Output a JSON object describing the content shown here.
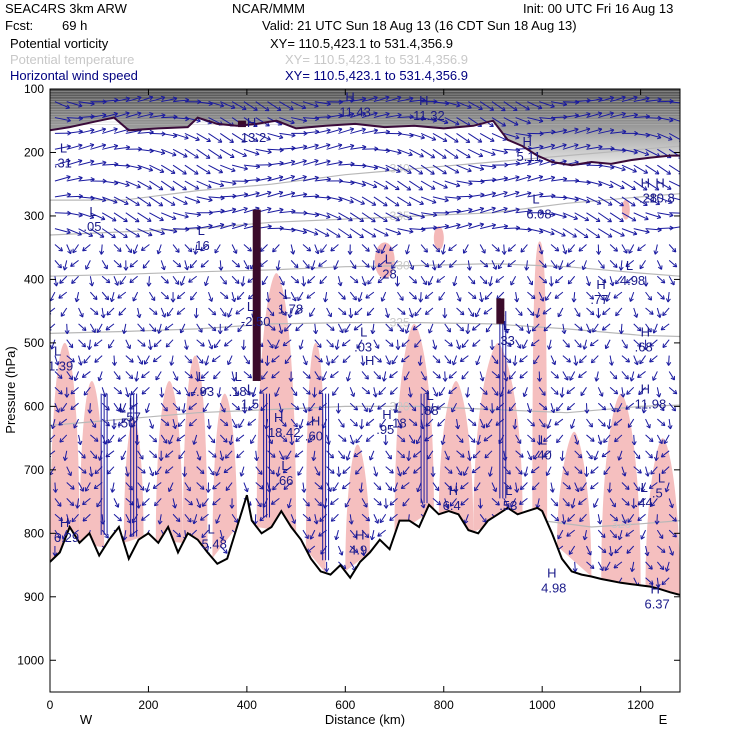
{
  "header": {
    "model": "SEAC4RS  3km ARW",
    "org": "NCAR/MMM",
    "init": "Init: 00 UTC Fri 16 Aug 13",
    "fcst_label": "Fcst:",
    "fcst_value": "69 h",
    "valid": "Valid: 21 UTC Sun 18 Aug 13 (16 CDT Sun 18 Aug 13)"
  },
  "fields": [
    {
      "name": "Potential vorticity",
      "xy": "XY= 110.5,423.1 to 531.4,356.9",
      "color": "#000000"
    },
    {
      "name": "Potential temperature",
      "xy": "XY= 110.5,423.1 to 531.4,356.9",
      "color": "#c8c8c8"
    },
    {
      "name": "Horizontal wind speed",
      "xy": "XY= 110.5,423.1 to 531.4,356.9",
      "color": "#000080"
    }
  ],
  "chart_data": {
    "type": "cross-section",
    "xlabel": "Distance (km)",
    "ylabel": "Pressure (hPa)",
    "xlim": [
      0,
      1280
    ],
    "ylim": [
      1050,
      100
    ],
    "xticks": [
      0,
      200,
      400,
      600,
      800,
      1000,
      1200
    ],
    "yticks": [
      100,
      200,
      300,
      400,
      500,
      600,
      700,
      800,
      900,
      1000
    ],
    "x_end_labels": {
      "left": "W",
      "right": "E"
    },
    "terrain_pressure": [
      [
        0,
        845
      ],
      [
        20,
        830
      ],
      [
        40,
        790
      ],
      [
        60,
        815
      ],
      [
        80,
        800
      ],
      [
        100,
        835
      ],
      [
        120,
        810
      ],
      [
        140,
        790
      ],
      [
        160,
        840
      ],
      [
        180,
        810
      ],
      [
        200,
        800
      ],
      [
        220,
        815
      ],
      [
        240,
        790
      ],
      [
        260,
        830
      ],
      [
        280,
        800
      ],
      [
        300,
        810
      ],
      [
        320,
        830
      ],
      [
        340,
        848
      ],
      [
        360,
        840
      ],
      [
        380,
        790
      ],
      [
        400,
        740
      ],
      [
        410,
        780
      ],
      [
        430,
        800
      ],
      [
        450,
        790
      ],
      [
        470,
        765
      ],
      [
        490,
        790
      ],
      [
        510,
        810
      ],
      [
        530,
        840
      ],
      [
        550,
        860
      ],
      [
        570,
        865
      ],
      [
        590,
        850
      ],
      [
        610,
        870
      ],
      [
        630,
        845
      ],
      [
        650,
        830
      ],
      [
        670,
        810
      ],
      [
        690,
        825
      ],
      [
        710,
        780
      ],
      [
        730,
        780
      ],
      [
        750,
        790
      ],
      [
        770,
        755
      ],
      [
        790,
        770
      ],
      [
        810,
        765
      ],
      [
        830,
        770
      ],
      [
        850,
        795
      ],
      [
        870,
        800
      ],
      [
        890,
        780
      ],
      [
        910,
        770
      ],
      [
        930,
        760
      ],
      [
        950,
        770
      ],
      [
        970,
        765
      ],
      [
        990,
        760
      ],
      [
        1000,
        765
      ],
      [
        1020,
        800
      ],
      [
        1040,
        840
      ],
      [
        1060,
        860
      ],
      [
        1080,
        865
      ],
      [
        1100,
        868
      ],
      [
        1120,
        872
      ],
      [
        1140,
        875
      ],
      [
        1160,
        878
      ],
      [
        1180,
        880
      ],
      [
        1200,
        882
      ],
      [
        1220,
        884
      ],
      [
        1240,
        888
      ],
      [
        1260,
        893
      ],
      [
        1280,
        897
      ]
    ],
    "tropopause_pv_pressure": [
      [
        0,
        165
      ],
      [
        40,
        160
      ],
      [
        100,
        150
      ],
      [
        130,
        145
      ],
      [
        160,
        165
      ],
      [
        220,
        162
      ],
      [
        280,
        160
      ],
      [
        300,
        145
      ],
      [
        340,
        155
      ],
      [
        380,
        158
      ],
      [
        420,
        155
      ],
      [
        460,
        150
      ],
      [
        500,
        162
      ],
      [
        560,
        158
      ],
      [
        620,
        155
      ],
      [
        680,
        160
      ],
      [
        740,
        158
      ],
      [
        800,
        162
      ],
      [
        860,
        158
      ],
      [
        900,
        150
      ],
      [
        930,
        180
      ],
      [
        960,
        190
      ],
      [
        990,
        205
      ],
      [
        1020,
        215
      ],
      [
        1060,
        220
      ],
      [
        1100,
        215
      ],
      [
        1140,
        218
      ],
      [
        1180,
        212
      ],
      [
        1220,
        208
      ],
      [
        1260,
        205
      ],
      [
        1280,
        205
      ]
    ],
    "theta_contours": [
      {
        "label": "340",
        "points": [
          [
            0,
            275
          ],
          [
            150,
            275
          ],
          [
            300,
            260
          ],
          [
            450,
            250
          ],
          [
            600,
            235
          ],
          [
            750,
            225
          ],
          [
            900,
            215
          ],
          [
            1050,
            205
          ],
          [
            1200,
            195
          ],
          [
            1280,
            190
          ]
        ]
      },
      {
        "label": "335",
        "points": [
          [
            0,
            330
          ],
          [
            150,
            325
          ],
          [
            300,
            320
          ],
          [
            450,
            310
          ],
          [
            600,
            305
          ],
          [
            750,
            300
          ],
          [
            900,
            295
          ],
          [
            1050,
            280
          ],
          [
            1200,
            270
          ],
          [
            1280,
            265
          ]
        ]
      },
      {
        "label": "330",
        "points": [
          [
            0,
            395
          ],
          [
            150,
            392
          ],
          [
            300,
            388
          ],
          [
            450,
            385
          ],
          [
            600,
            380
          ],
          [
            750,
            378
          ],
          [
            900,
            375
          ],
          [
            1050,
            380
          ],
          [
            1200,
            390
          ],
          [
            1280,
            395
          ]
        ]
      },
      {
        "label": "325",
        "points": [
          [
            0,
            485
          ],
          [
            150,
            482
          ],
          [
            300,
            478
          ],
          [
            450,
            470
          ],
          [
            600,
            468
          ],
          [
            750,
            468
          ],
          [
            900,
            470
          ],
          [
            1050,
            478
          ],
          [
            1200,
            488
          ],
          [
            1280,
            490
          ]
        ]
      },
      {
        "label": "320",
        "points": [
          [
            0,
            630
          ],
          [
            150,
            620
          ],
          [
            300,
            610
          ],
          [
            450,
            605
          ],
          [
            600,
            600
          ],
          [
            750,
            600
          ],
          [
            900,
            605
          ],
          [
            1050,
            610
          ],
          [
            1200,
            600
          ],
          [
            1280,
            598
          ]
        ]
      },
      {
        "label": "320",
        "points": [
          [
            1000,
            780
          ],
          [
            1100,
            790
          ],
          [
            1200,
            785
          ],
          [
            1280,
            780
          ]
        ]
      }
    ],
    "pv_maxima": [
      {
        "x": 420,
        "p_top": 290,
        "p_bot": 560
      },
      {
        "x": 915,
        "p_top": 430,
        "p_bot": 470
      },
      {
        "x": 390,
        "p_top": 150,
        "p_bot": 160
      }
    ],
    "annotations": [
      {
        "kind": "L",
        "x": 80,
        "p": 300,
        "value": ".05"
      },
      {
        "kind": "L",
        "x": 300,
        "p": 330,
        "value": ".16"
      },
      {
        "kind": "L",
        "x": 400,
        "p": 450,
        "value": "-2.50"
      },
      {
        "kind": "L",
        "x": 475,
        "p": 430,
        "value": "1.78"
      },
      {
        "kind": "L",
        "x": 630,
        "p": 490,
        "value": ".03"
      },
      {
        "kind": "L",
        "x": 680,
        "p": 375,
        "value": ".28"
      },
      {
        "kind": "L",
        "x": 980,
        "p": 280,
        "value": "6.08"
      },
      {
        "kind": "H",
        "x": 1110,
        "p": 415,
        "value": ".77"
      },
      {
        "kind": "L",
        "x": 1170,
        "p": 385,
        "value": "4.98"
      },
      {
        "kind": "H",
        "x": 1200,
        "p": 490,
        "value": ".68"
      },
      {
        "kind": "H",
        "x": 1200,
        "p": 580,
        "value": "11.98"
      },
      {
        "kind": "L",
        "x": 995,
        "p": 660,
        "value": ".40"
      },
      {
        "kind": "L",
        "x": 1200,
        "p": 735,
        "value": ".44"
      },
      {
        "kind": "L",
        "x": 8,
        "p": 520,
        "value": "1.39"
      },
      {
        "kind": "L",
        "x": 160,
        "p": 600,
        "value": ".57"
      },
      {
        "kind": "L",
        "x": 140,
        "p": 610,
        "value": "-.50"
      },
      {
        "kind": "L",
        "x": 300,
        "p": 560,
        "value": "-.93"
      },
      {
        "kind": "L",
        "x": 375,
        "p": 560,
        "value": ".18"
      },
      {
        "kind": "L",
        "x": 400,
        "p": 580,
        "value": "1.5"
      },
      {
        "kind": "H",
        "x": 455,
        "p": 625,
        "value": "18.42"
      },
      {
        "kind": "H",
        "x": 530,
        "p": 630,
        "value": ".60"
      },
      {
        "kind": "H",
        "x": 675,
        "p": 620,
        "value": ".95"
      },
      {
        "kind": "L",
        "x": 700,
        "p": 610,
        "value": ".18"
      },
      {
        "kind": "L",
        "x": 765,
        "p": 590,
        "value": ".88"
      },
      {
        "kind": "L",
        "x": 470,
        "p": 700,
        "value": ".66"
      },
      {
        "kind": "H",
        "x": 640,
        "p": 535,
        "value": ""
      },
      {
        "kind": "H",
        "x": 20,
        "p": 790,
        "value": "6.29"
      },
      {
        "kind": "L",
        "x": 320,
        "p": 800,
        "value": "5.48"
      },
      {
        "kind": "H",
        "x": 620,
        "p": 810,
        "value": "4.9"
      },
      {
        "kind": "H",
        "x": 810,
        "p": 740,
        "value": "6.4"
      },
      {
        "kind": "L",
        "x": 925,
        "p": 740,
        "value": ".53"
      },
      {
        "kind": "H",
        "x": 1010,
        "p": 870,
        "value": "4.98"
      },
      {
        "kind": "H",
        "x": 1220,
        "p": 895,
        "value": "6.37"
      },
      {
        "kind": "H",
        "x": 600,
        "p": 120,
        "value": "11.43"
      },
      {
        "kind": "H",
        "x": 400,
        "p": 160,
        "value": "13.2"
      },
      {
        "kind": "H",
        "x": 750,
        "p": 125,
        "value": "11.32"
      },
      {
        "kind": "H",
        "x": 960,
        "p": 190,
        "value": "5.11"
      },
      {
        "kind": "H",
        "x": 1200,
        "p": 255,
        "value": "-.28"
      },
      {
        "kind": "H",
        "x": 1230,
        "p": 255,
        "value": "10.8"
      },
      {
        "kind": "L",
        "x": 20,
        "p": 200,
        "value": ".31"
      },
      {
        "kind": "L",
        "x": 920,
        "p": 480,
        "value": ".33"
      },
      {
        "kind": "L",
        "x": 1235,
        "p": 720,
        "value": ".5"
      }
    ]
  }
}
